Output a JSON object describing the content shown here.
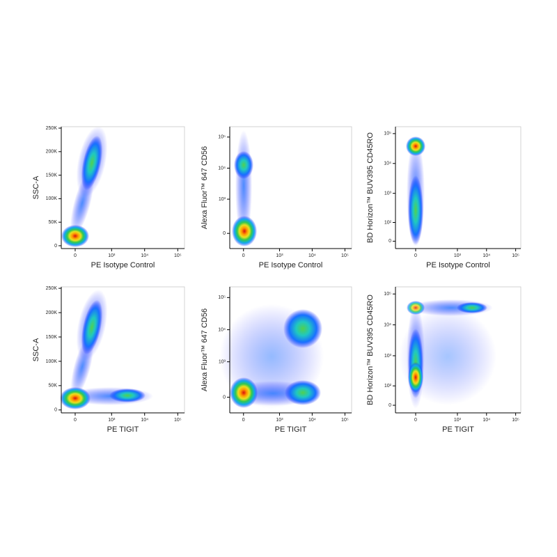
{
  "chart_data": [
    {
      "type": "scatter",
      "x_label": "PE Isotype Control",
      "y_label": "SSC-A",
      "xscale": "biexponential",
      "yscale": "linear",
      "xlim": [
        -180,
        160000
      ],
      "xticks": [
        0,
        {
          "value": 1000,
          "label": "10³"
        },
        {
          "value": 10000,
          "label": "10⁴"
        },
        {
          "value": 100000,
          "label": "10⁵"
        }
      ],
      "ylim": [
        -6000,
        253000
      ],
      "yticks": [
        0,
        {
          "value": 50000,
          "label": "50K"
        },
        {
          "value": 100000,
          "label": "100K"
        },
        {
          "value": 150000,
          "label": "150K"
        },
        {
          "value": 200000,
          "label": "200K"
        },
        {
          "value": 250000,
          "label": "250K"
        }
      ]
    },
    {
      "type": "scatter",
      "x_label": "PE Isotype Control",
      "y_label": "Alexa Fluor™ 647 CD56",
      "xscale": "biexponential",
      "yscale": "biexponential",
      "xlim": [
        -180,
        160000
      ],
      "xticks": [
        0,
        {
          "value": 1000,
          "label": "10³"
        },
        {
          "value": 10000,
          "label": "10⁴"
        },
        {
          "value": 100000,
          "label": "10⁵"
        }
      ],
      "ylim": [
        -220,
        215000
      ],
      "yticks": [
        0,
        {
          "value": 1000,
          "label": "10³"
        },
        {
          "value": 10000,
          "label": "10⁴"
        },
        {
          "value": 100000,
          "label": "10⁵"
        }
      ]
    },
    {
      "type": "scatter",
      "x_label": "PE Isotype Control",
      "y_label": "BD Horizon™ BUV395 CD45RO",
      "xscale": "biexponential",
      "yscale": "biexponential",
      "xlim": [
        -175,
        150000
      ],
      "xticks": [
        0,
        {
          "value": 1000,
          "label": "10³"
        },
        {
          "value": 10000,
          "label": "10⁴"
        },
        {
          "value": 100000,
          "label": "10⁵"
        }
      ],
      "ylim": [
        -30,
        170000
      ],
      "yticks": [
        0,
        {
          "value": 100,
          "label": "10²"
        },
        {
          "value": 1000,
          "label": "10³"
        },
        {
          "value": 10000,
          "label": "10⁴"
        },
        {
          "value": 100000,
          "label": "10⁵"
        }
      ]
    },
    {
      "type": "scatter",
      "x_label": "PE TIGIT",
      "y_label": "SSC-A",
      "xscale": "biexponential",
      "yscale": "linear",
      "xlim": [
        -180,
        160000
      ],
      "xticks": [
        0,
        {
          "value": 1000,
          "label": "10³"
        },
        {
          "value": 10000,
          "label": "10⁴"
        },
        {
          "value": 100000,
          "label": "10⁵"
        }
      ],
      "ylim": [
        -6000,
        253000
      ],
      "yticks": [
        0,
        {
          "value": 50000,
          "label": "50K"
        },
        {
          "value": 100000,
          "label": "100K"
        },
        {
          "value": 150000,
          "label": "150K"
        },
        {
          "value": 200000,
          "label": "200K"
        },
        {
          "value": 250000,
          "label": "250K"
        }
      ]
    },
    {
      "type": "scatter",
      "x_label": "PE TIGIT",
      "y_label": "Alexa Fluor™ 647 CD56",
      "xscale": "biexponential",
      "yscale": "biexponential",
      "xlim": [
        -180,
        160000
      ],
      "xticks": [
        0,
        {
          "value": 1000,
          "label": "10³"
        },
        {
          "value": 10000,
          "label": "10⁴"
        },
        {
          "value": 100000,
          "label": "10⁵"
        }
      ],
      "ylim": [
        -220,
        215000
      ],
      "yticks": [
        0,
        {
          "value": 1000,
          "label": "10³"
        },
        {
          "value": 10000,
          "label": "10⁴"
        },
        {
          "value": 100000,
          "label": "10⁵"
        }
      ]
    },
    {
      "type": "scatter",
      "x_label": "PE TIGIT",
      "y_label": "BD Horizon™ BUV395 CD45RO",
      "xscale": "biexponential",
      "yscale": "biexponential",
      "xlim": [
        -175,
        150000
      ],
      "xticks": [
        0,
        {
          "value": 1000,
          "label": "10³"
        },
        {
          "value": 10000,
          "label": "10⁴"
        },
        {
          "value": 100000,
          "label": "10⁵"
        }
      ],
      "ylim": [
        -30,
        170000
      ],
      "yticks": [
        0,
        {
          "value": 100,
          "label": "10²"
        },
        {
          "value": 1000,
          "label": "10³"
        },
        {
          "value": 10000,
          "label": "10⁴"
        },
        {
          "value": 100000,
          "label": "10⁵"
        }
      ]
    }
  ]
}
